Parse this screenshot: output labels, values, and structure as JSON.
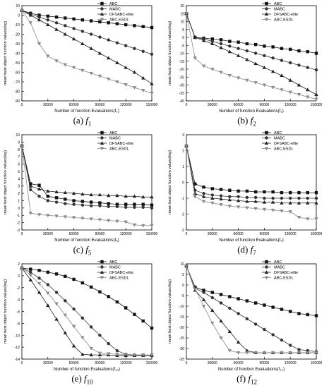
{
  "colors": {
    "ABC": "#111111",
    "MABC": "#333333",
    "DFSABC-elite": "#222222",
    "ABC-ESDL": "#8a8a8a"
  },
  "legend_placement": "top-right",
  "chart_data": [
    {
      "type": "line",
      "caption_letter": "(a)",
      "caption_fn": "f",
      "caption_sub": "1",
      "xlabel": "Number of function Evaluations(f",
      "xlabel_sub": "1",
      "ylabel": "mean best object function values(log)",
      "xlim": [
        0,
        150000
      ],
      "ylim": [
        -90,
        10
      ],
      "xticks": [
        0,
        30000,
        60000,
        90000,
        120000,
        150000
      ],
      "yticks": [
        10,
        0,
        -10,
        -20,
        -30,
        -40,
        -50,
        -60,
        -70,
        -80,
        -90
      ],
      "x": [
        0,
        10000,
        20000,
        30000,
        40000,
        50000,
        60000,
        70000,
        80000,
        90000,
        100000,
        110000,
        120000,
        130000,
        140000,
        150000
      ],
      "series": [
        {
          "name": "ABC",
          "marker": "square",
          "values": [
            5,
            2,
            0,
            -1,
            -2,
            -3,
            -4,
            -5,
            -6,
            -7,
            -8,
            -9,
            -10,
            -11,
            -12,
            -13
          ]
        },
        {
          "name": "MABC",
          "marker": "circle",
          "values": [
            5,
            1,
            -2,
            -5,
            -8,
            -11,
            -14,
            -17,
            -20,
            -23,
            -26,
            -29,
            -32,
            -35,
            -38,
            -41
          ]
        },
        {
          "name": "DFSABC-elite",
          "marker": "triangle-up",
          "values": [
            5,
            0,
            -5,
            -10,
            -15,
            -20,
            -25,
            -30,
            -35,
            -40,
            -45,
            -50,
            -55,
            -60,
            -66,
            -72
          ]
        },
        {
          "name": "ABC-ESDL",
          "marker": "triangle-down",
          "values": [
            5,
            -8,
            -30,
            -43,
            -48,
            -52,
            -55,
            -58,
            -61,
            -64,
            -67,
            -70,
            -73,
            -76,
            -79,
            -82
          ]
        }
      ]
    },
    {
      "type": "line",
      "caption_letter": "(b)",
      "caption_fn": "f",
      "caption_sub": "2",
      "xlabel": "Number of function Evaluations(f",
      "xlabel_sub": "2",
      "ylabel": "mean best object function values(log)",
      "xlim": [
        0,
        150000
      ],
      "ylim": [
        -40,
        20
      ],
      "xticks": [
        0,
        30000,
        60000,
        90000,
        120000,
        150000
      ],
      "yticks": [
        20,
        15,
        10,
        5,
        0,
        -5,
        -10,
        -15,
        -20,
        -25,
        -30,
        -35,
        -40
      ],
      "x": [
        0,
        10000,
        20000,
        30000,
        40000,
        50000,
        60000,
        70000,
        80000,
        90000,
        100000,
        110000,
        120000,
        130000,
        140000,
        150000
      ],
      "series": [
        {
          "name": "ABC",
          "marker": "square",
          "values": [
            15,
            0,
            -0.5,
            -1,
            -1.5,
            -2.5,
            -3,
            -4,
            -4.5,
            -5.5,
            -6,
            -7,
            -7.5,
            -8.5,
            -9,
            -10
          ]
        },
        {
          "name": "MABC",
          "marker": "circle",
          "values": [
            15,
            0,
            -1,
            -2.5,
            -4,
            -5.5,
            -7,
            -8.5,
            -10,
            -11.5,
            -13,
            -14.5,
            -16,
            -17.5,
            -19,
            -20.5
          ]
        },
        {
          "name": "DFSABC-elite",
          "marker": "triangle-up",
          "values": [
            15,
            0,
            -2,
            -4,
            -6.5,
            -9,
            -11.5,
            -14,
            -16.5,
            -19,
            -21.5,
            -24,
            -27,
            -30,
            -33,
            -36
          ]
        },
        {
          "name": "ABC-ESDL",
          "marker": "triangle-down",
          "values": [
            15,
            -13,
            -18,
            -20,
            -22,
            -24,
            -25.5,
            -27,
            -28.5,
            -30,
            -31.5,
            -33,
            -34.5,
            -36,
            -37.5,
            -39
          ]
        }
      ]
    },
    {
      "type": "line",
      "caption_letter": "(c)",
      "caption_fn": "f",
      "caption_sub": "5",
      "xlabel": "Number of function Evaluations(f",
      "xlabel_sub": "5",
      "ylabel": "mean best object function values(log)",
      "xlim": [
        0,
        150000
      ],
      "ylim": [
        -3,
        10
      ],
      "xticks": [
        0,
        30000,
        60000,
        90000,
        120000,
        150000
      ],
      "yticks": [
        10,
        9,
        8,
        7,
        6,
        5,
        4,
        3,
        2,
        1,
        0,
        -1,
        -2,
        -3
      ],
      "x": [
        0,
        10000,
        20000,
        30000,
        40000,
        50000,
        60000,
        70000,
        80000,
        90000,
        100000,
        110000,
        120000,
        130000,
        140000,
        150000
      ],
      "series": [
        {
          "name": "ABC",
          "marker": "square",
          "values": [
            8.5,
            3.3,
            3.1,
            1.6,
            1.4,
            1.2,
            1.0,
            0.9,
            0.8,
            0.7,
            0.6,
            0.5,
            0.5,
            0.5,
            0.5,
            0.4
          ]
        },
        {
          "name": "MABC",
          "marker": "circle",
          "values": [
            8.5,
            2.5,
            1.6,
            1.0,
            0.8,
            0.6,
            0.5,
            0.4,
            0.3,
            0.3,
            0.2,
            0.2,
            0.1,
            0.1,
            0.1,
            0.0
          ]
        },
        {
          "name": "DFSABC-elite",
          "marker": "triangle-up",
          "values": [
            8.5,
            3.0,
            2.6,
            2.3,
            2.2,
            2.1,
            2.0,
            1.9,
            1.8,
            1.8,
            1.7,
            1.7,
            1.6,
            1.6,
            1.5,
            1.5
          ]
        },
        {
          "name": "ABC-ESDL",
          "marker": "triangle-down",
          "values": [
            8.5,
            -0.7,
            -0.9,
            -1.0,
            -1.1,
            -1.2,
            -1.3,
            -1.4,
            -1.5,
            -1.6,
            -1.7,
            -1.8,
            -1.9,
            -2.3,
            -2.4,
            -2.4
          ]
        }
      ]
    },
    {
      "type": "line",
      "caption_letter": "(d)",
      "caption_fn": "f",
      "caption_sub": "7",
      "xlabel": "Number of function Evaluations(f",
      "xlabel_sub": "7",
      "ylabel": "mean best object function values(log)",
      "xlim": [
        0,
        150000
      ],
      "ylim": [
        -3,
        3
      ],
      "xticks": [
        0,
        30000,
        60000,
        90000,
        120000,
        150000
      ],
      "yticks": [
        3,
        2,
        1,
        0,
        -1,
        -2,
        -3
      ],
      "x": [
        0,
        10000,
        20000,
        30000,
        40000,
        50000,
        60000,
        70000,
        80000,
        90000,
        100000,
        110000,
        120000,
        130000,
        140000,
        150000
      ],
      "series": [
        {
          "name": "ABC",
          "marker": "square",
          "values": [
            2.3,
            -0.1,
            -0.3,
            -0.4,
            -0.45,
            -0.5,
            -0.55,
            -0.55,
            -0.6,
            -0.6,
            -0.6,
            -0.65,
            -0.65,
            -0.65,
            -0.65,
            -0.65
          ]
        },
        {
          "name": "MABC",
          "marker": "circle",
          "values": [
            2.3,
            -0.5,
            -0.7,
            -0.8,
            -0.85,
            -0.9,
            -0.9,
            -0.95,
            -0.95,
            -1.0,
            -1.0,
            -1.0,
            -1.0,
            -1.0,
            -1.0,
            -1.0
          ]
        },
        {
          "name": "DFSABC-elite",
          "marker": "triangle-up",
          "values": [
            2.3,
            -0.7,
            -0.9,
            -1.0,
            -1.05,
            -1.1,
            -1.15,
            -1.2,
            -1.2,
            -1.25,
            -1.25,
            -1.3,
            -1.3,
            -1.3,
            -1.3,
            -1.3
          ]
        },
        {
          "name": "ABC-ESDL",
          "marker": "triangle-down",
          "values": [
            2.3,
            -0.9,
            -1.2,
            -1.3,
            -1.4,
            -1.5,
            -1.55,
            -1.6,
            -1.65,
            -1.7,
            -1.75,
            -1.8,
            -1.85,
            -2.2,
            -2.3,
            -2.3
          ]
        }
      ]
    },
    {
      "type": "line",
      "caption_letter": "(e)",
      "caption_fn": "f",
      "caption_sub": "10",
      "xlabel": "Number of function Evaluations(f",
      "xlabel_sub": "10",
      "ylabel": "mean best object function values(log)",
      "xlim": [
        0,
        150000
      ],
      "ylim": [
        -14,
        2
      ],
      "xticks": [
        0,
        30000,
        60000,
        90000,
        120000,
        150000
      ],
      "yticks": [
        2,
        0,
        -2,
        -4,
        -6,
        -8,
        -10,
        -12,
        -14
      ],
      "x": [
        0,
        10000,
        20000,
        30000,
        40000,
        50000,
        60000,
        70000,
        80000,
        90000,
        100000,
        110000,
        120000,
        130000,
        140000,
        150000
      ],
      "series": [
        {
          "name": "ABC",
          "marker": "square",
          "values": [
            1.3,
            1.1,
            0.9,
            0.6,
            0.3,
            -0.1,
            -0.6,
            -1.2,
            -1.9,
            -2.7,
            -3.5,
            -4.4,
            -5.4,
            -6.5,
            -7.6,
            -8.8
          ]
        },
        {
          "name": "MABC",
          "marker": "circle",
          "values": [
            1.3,
            0.6,
            -0.4,
            -1.5,
            -2.8,
            -4.2,
            -5.6,
            -7.1,
            -8.6,
            -10.0,
            -11.4,
            -12.6,
            -13.2,
            -13.3,
            -13.3,
            -13.4
          ]
        },
        {
          "name": "DFSABC-elite",
          "marker": "triangle-up",
          "values": [
            1.3,
            -0.7,
            -2.8,
            -5.0,
            -7.3,
            -9.6,
            -11.8,
            -13.2,
            -13.3,
            -13.3,
            -13.3,
            -13.4,
            -13.4,
            -13.4,
            -13.4,
            -13.4
          ]
        },
        {
          "name": "ABC-ESDL",
          "marker": "triangle-down",
          "values": [
            1.3,
            0.1,
            -1.3,
            -2.9,
            -4.7,
            -6.6,
            -8.5,
            -10.4,
            -12.2,
            -13.0,
            -13.1,
            -13.2,
            -13.2,
            -13.3,
            -13.3,
            -13.3
          ]
        }
      ]
    },
    {
      "type": "line",
      "caption_letter": "(f)",
      "caption_fn": "f",
      "caption_sub": "12",
      "xlabel": "Number of function Evaluations(f",
      "xlabel_sub": "12",
      "ylabel": "mean best object function values(log)",
      "xlim": [
        0,
        150000
      ],
      "ylim": [
        -35,
        10
      ],
      "xticks": [
        0,
        30000,
        60000,
        90000,
        120000,
        150000
      ],
      "yticks": [
        10,
        5,
        0,
        -5,
        -10,
        -15,
        -20,
        -25,
        -30,
        -35
      ],
      "x": [
        0,
        10000,
        20000,
        30000,
        40000,
        50000,
        60000,
        70000,
        80000,
        90000,
        100000,
        110000,
        120000,
        130000,
        140000,
        150000
      ],
      "series": [
        {
          "name": "ABC",
          "marker": "square",
          "values": [
            9,
            -1,
            -2.5,
            -3.5,
            -4.5,
            -5.5,
            -6.5,
            -7.5,
            -8.5,
            -9.5,
            -10.5,
            -11.5,
            -12.5,
            -13.5,
            -14,
            -14.5
          ]
        },
        {
          "name": "MABC",
          "marker": "circle",
          "values": [
            9,
            -1.5,
            -3.5,
            -6,
            -8.5,
            -11,
            -13.5,
            -16,
            -18.5,
            -21,
            -23.5,
            -26,
            -28.5,
            -30.5,
            -31,
            -31.5
          ]
        },
        {
          "name": "DFSABC-elite",
          "marker": "triangle-up",
          "values": [
            9,
            -2.5,
            -7,
            -12,
            -17,
            -22,
            -27,
            -31,
            -32,
            -32,
            -32,
            -32,
            -32,
            -32,
            -32,
            -32
          ]
        },
        {
          "name": "ABC-ESDL",
          "marker": "triangle-down",
          "values": [
            9,
            -2,
            -10,
            -18,
            -25,
            -31,
            -32,
            -32,
            -32,
            -32,
            -32,
            -32,
            -32,
            -32,
            -32,
            -32
          ]
        }
      ]
    }
  ]
}
